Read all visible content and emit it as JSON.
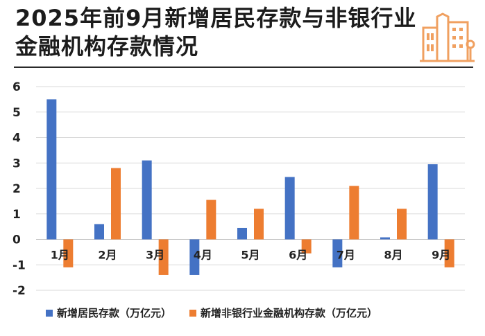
{
  "header": {
    "title": "2025年前9月新增居民存款与非银行业金融机构存款情况"
  },
  "colors": {
    "series1": "#4472C4",
    "series2": "#ED7D31",
    "logo": "#F0A060",
    "grid": "#D9D9D9"
  },
  "chart_data": {
    "type": "bar",
    "title": "2025年前9月新增居民存款与非银行业金融机构存款情况",
    "categories": [
      "1月",
      "2月",
      "3月",
      "4月",
      "5月",
      "6月",
      "7月",
      "8月",
      "9月"
    ],
    "series": [
      {
        "name": "新增居民存款（万亿元）",
        "values": [
          5.5,
          0.6,
          3.1,
          -1.4,
          0.45,
          2.45,
          -1.1,
          0.08,
          2.95
        ]
      },
      {
        "name": "新增非银行业金融机构存款（万亿元）",
        "values": [
          -1.1,
          2.8,
          -1.4,
          1.55,
          1.2,
          -0.55,
          2.1,
          1.2,
          -1.1
        ]
      }
    ],
    "ylim": [
      -2,
      6
    ],
    "yticks": [
      "-2",
      "-1",
      "0",
      "1",
      "2",
      "3",
      "4",
      "5",
      "6"
    ],
    "grid": true,
    "legend_position": "bottom"
  }
}
